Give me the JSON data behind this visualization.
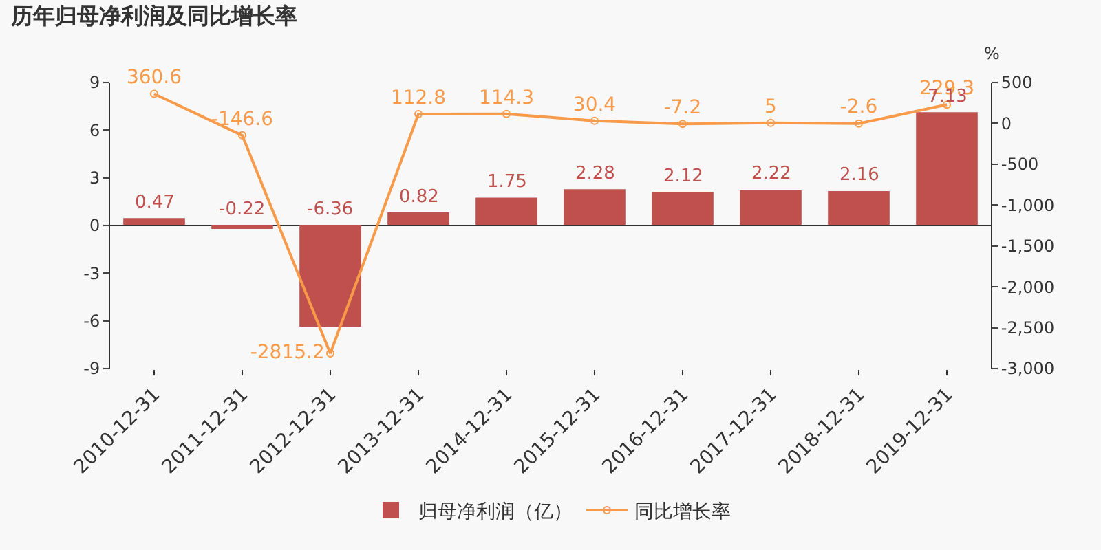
{
  "chart_data": {
    "type": "bar",
    "title": "历年归母净利润及同比增长率",
    "y2label": "%",
    "categories": [
      "2010-12-31",
      "2011-12-31",
      "2012-12-31",
      "2013-12-31",
      "2014-12-31",
      "2015-12-31",
      "2016-12-31",
      "2017-12-31",
      "2018-12-31",
      "2019-12-31"
    ],
    "series": [
      {
        "name": "归母净利润（亿）",
        "color": "#c0504d",
        "values": [
          0.47,
          -0.22,
          -6.36,
          0.82,
          1.75,
          2.28,
          2.12,
          2.22,
          2.16,
          7.13
        ]
      },
      {
        "name": "同比增长率",
        "type": "line",
        "axis": "y2",
        "color": "#f79a4a",
        "marker": "circle",
        "values": [
          360.6,
          -146.6,
          -2815.2,
          112.8,
          114.3,
          30.4,
          -7.2,
          5,
          -2.6,
          229.3
        ]
      }
    ],
    "ylim": [
      -9,
      9
    ],
    "yticks": [
      -9,
      -6,
      -3,
      0,
      3,
      6,
      9
    ],
    "y2lim": [
      -3000,
      500
    ],
    "y2ticks": [
      {
        "value": -3000,
        "label": "-3,000"
      },
      {
        "value": -2500,
        "label": "-2,500"
      },
      {
        "value": -2000,
        "label": "-2,000"
      },
      {
        "value": -1500,
        "label": "-1,500"
      },
      {
        "value": -1000,
        "label": "-1,000"
      },
      {
        "value": -500,
        "label": "-500"
      },
      0,
      500
    ],
    "data_labels": true,
    "legend": "bottom"
  }
}
